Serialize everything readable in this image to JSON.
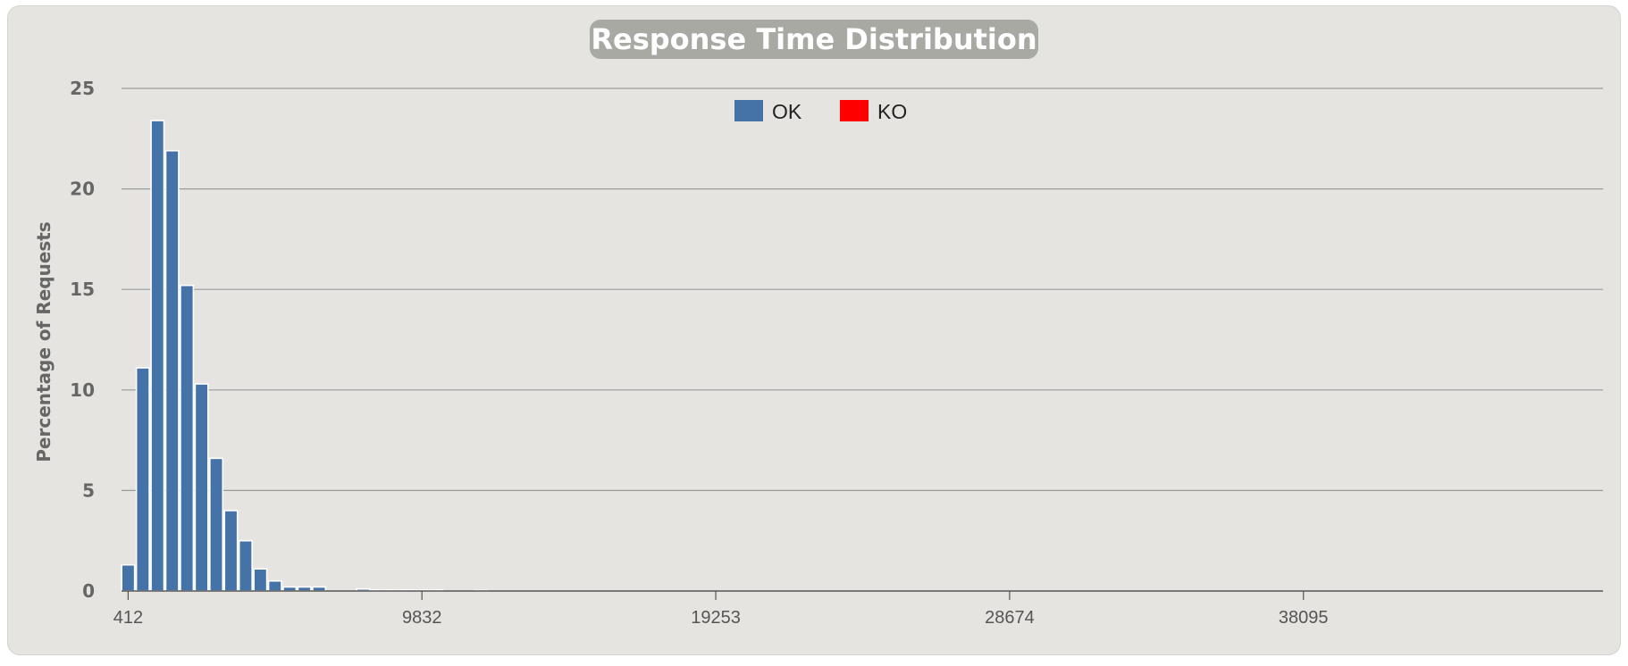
{
  "chart_data": {
    "type": "bar",
    "title": "Response Time Distribution",
    "xlabel": "",
    "ylabel": "Percentage of Requests",
    "ylim": [
      0,
      25
    ],
    "yticks": [
      "0",
      "5",
      "10",
      "15",
      "20",
      "25"
    ],
    "xticks": [
      "412",
      "9832",
      "19253",
      "28674",
      "38095"
    ],
    "xlim": [
      200,
      47700
    ],
    "bin_width": 471,
    "grid": true,
    "legend_position": "top-center",
    "series": [
      {
        "name": "OK",
        "color": "#4572a7",
        "values": [
          1.3,
          11.1,
          23.4,
          21.9,
          15.2,
          10.3,
          6.6,
          4.0,
          2.5,
          1.1,
          0.5,
          0.2,
          0.2,
          0.2,
          0,
          0,
          0.1,
          0.05,
          0.05,
          0.05,
          0.05,
          0.05,
          0,
          0,
          0.03
        ]
      },
      {
        "name": "KO",
        "color": "#ff0000",
        "values": []
      }
    ]
  }
}
